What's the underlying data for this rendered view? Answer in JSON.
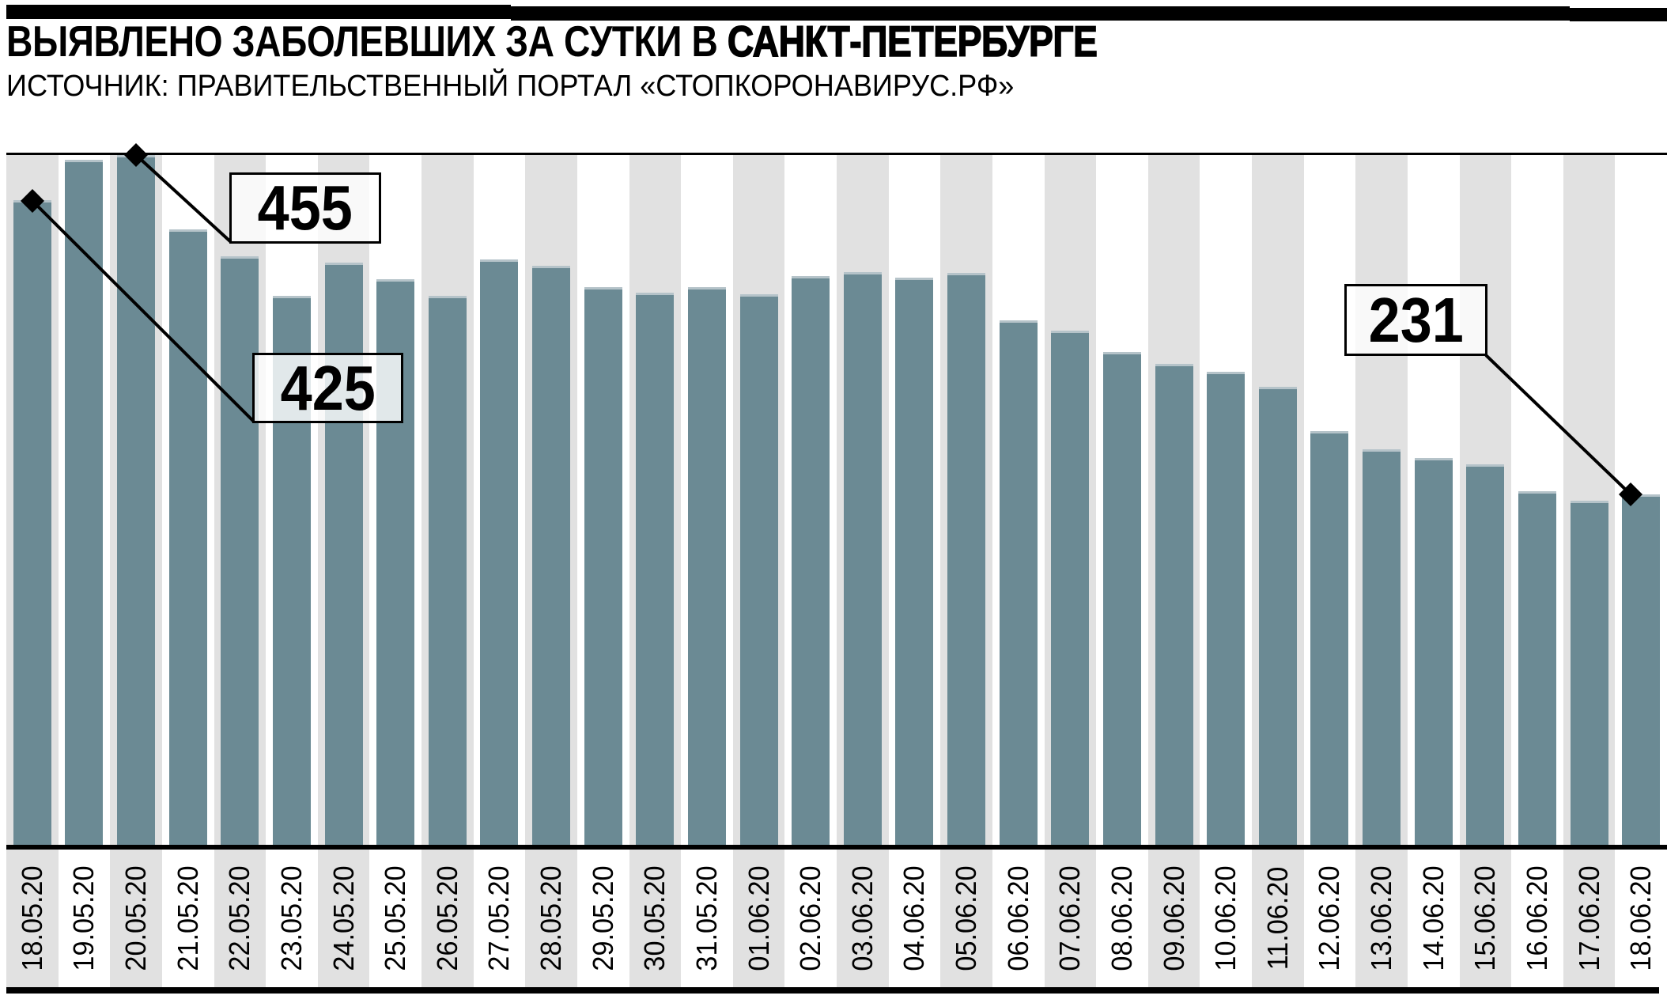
{
  "header": {
    "title_regular": "ВЫЯВЛЕНО ЗАБОЛЕВШИХ ЗА СУТКИ В ",
    "title_emphasis": "САНКТ-ПЕТЕРБУРГЕ",
    "source": "ИСТОЧНИК: ПРАВИТЕЛЬСТВЕННЫЙ ПОРТАЛ «СТОПКОРОНАВИРУС.РФ»"
  },
  "chart_data": {
    "type": "bar",
    "title": "ВЫЯВЛЕНО ЗАБОЛЕВШИХ ЗА СУТКИ В САНКТ-ПЕТЕРБУРГЕ",
    "source": "ИСТОЧНИК: ПРАВИТЕЛЬСТВЕННЫЙ ПОРТАЛ «СТОПКОРОНАВИРУС.РФ»",
    "categories": [
      "18.05.20",
      "19.05.20",
      "20.05.20",
      "21.05.20",
      "22.05.20",
      "23.05.20",
      "24.05.20",
      "25.05.20",
      "26.05.20",
      "27.05.20",
      "28.05.20",
      "29.05.20",
      "30.05.20",
      "31.05.20",
      "01.06.20",
      "02.06.20",
      "03.06.20",
      "04.06.20",
      "05.06.20",
      "06.06.20",
      "07.06.20",
      "08.06.20",
      "09.06.20",
      "10.06.20",
      "11.06.20",
      "12.06.20",
      "13.06.20",
      "14.06.20",
      "15.06.20",
      "16.06.20",
      "17.06.20",
      "18.06.20"
    ],
    "values": [
      425,
      452,
      455,
      406,
      388,
      362,
      384,
      373,
      362,
      386,
      382,
      368,
      364,
      368,
      363,
      375,
      378,
      374,
      377,
      346,
      339,
      325,
      317,
      312,
      302,
      273,
      261,
      255,
      251,
      233,
      227,
      231
    ],
    "xlabel": "",
    "ylabel": "",
    "ylim": [
      0,
      455
    ],
    "legend": "none",
    "background": "alternating vertical stripes",
    "callouts": [
      {
        "label": "455",
        "date": "20.05.20"
      },
      {
        "label": "425",
        "date": "18.05.20"
      },
      {
        "label": "231",
        "date": "18.06.20"
      }
    ],
    "colors": {
      "bar": "#6b8a94",
      "bar_cap": "#b5c3c9",
      "stripe_gray": "#e1e1e1",
      "stripe_white": "#ffffff",
      "line": "#000000"
    }
  }
}
